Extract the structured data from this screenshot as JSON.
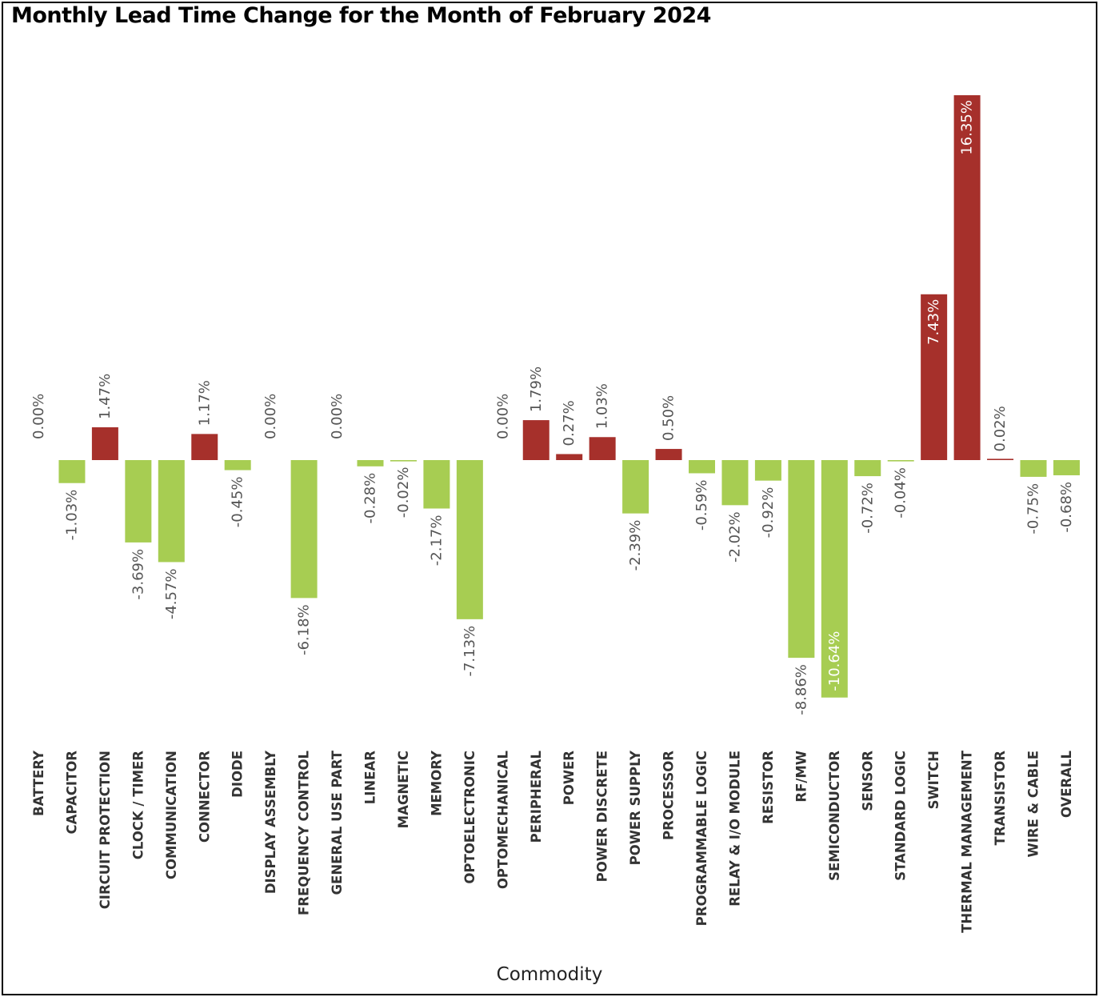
{
  "chart_data": {
    "type": "bar",
    "title": "Monthly Lead Time Change for the Month of February 2024",
    "xlabel": "Commodity",
    "ylabel": "",
    "ylim": [
      -16,
      16.5
    ],
    "grid": false,
    "legend": "none",
    "categories": [
      "BATTERY",
      "CAPACITOR",
      "CIRCUIT PROTECTION",
      "CLOCK / TIMER",
      "COMMUNICATION",
      "CONNECTOR",
      "DIODE",
      "DISPLAY ASSEMBLY",
      "FREQUENCY CONTROL",
      "GENERAL USE PART",
      "LINEAR",
      "MAGNETIC",
      "MEMORY",
      "OPTOELECTRONIC",
      "OPTOMECHANICAL",
      "PERIPHERAL",
      "POWER",
      "POWER DISCRETE",
      "POWER SUPPLY",
      "PROCESSOR",
      "PROGRAMMABLE LOGIC",
      "RELAY & I/O MODULE",
      "RESISTOR",
      "RF/MW",
      "SEMICONDUCTOR",
      "SENSOR",
      "STANDARD LOGIC",
      "SWITCH",
      "THERMAL MANAGEMENT",
      "TRANSISTOR",
      "WIRE & CABLE",
      "OVERALL"
    ],
    "values": [
      0.0,
      -1.03,
      1.47,
      -3.69,
      -4.57,
      1.17,
      -0.45,
      0.0,
      -6.18,
      0.0,
      -0.28,
      -0.02,
      -2.17,
      -7.13,
      0.0,
      1.79,
      0.27,
      1.03,
      -2.39,
      0.5,
      -0.59,
      -2.02,
      -0.92,
      -8.86,
      -10.64,
      -0.72,
      -0.04,
      7.43,
      16.35,
      0.02,
      -0.75,
      -0.68
    ],
    "labels": [
      "0.00%",
      "-1.03%",
      "1.47%",
      "-3.69%",
      "-4.57%",
      "1.17%",
      "-0.45%",
      "0.00%",
      "-6.18%",
      "0.00%",
      "-0.28%",
      "-0.02%",
      "-2.17%",
      "-7.13%",
      "0.00%",
      "1.79%",
      "0.27%",
      "1.03%",
      "-2.39%",
      "0.50%",
      "-0.59%",
      "-2.02%",
      "-0.92%",
      "-8.86%",
      "-10.64%",
      "-0.72%",
      "-0.04%",
      "7.43%",
      "16.35%",
      "0.02%",
      "-0.75%",
      "-0.68%"
    ],
    "colors": {
      "positive": "#a6302b",
      "negative": "#a7cd52"
    }
  }
}
